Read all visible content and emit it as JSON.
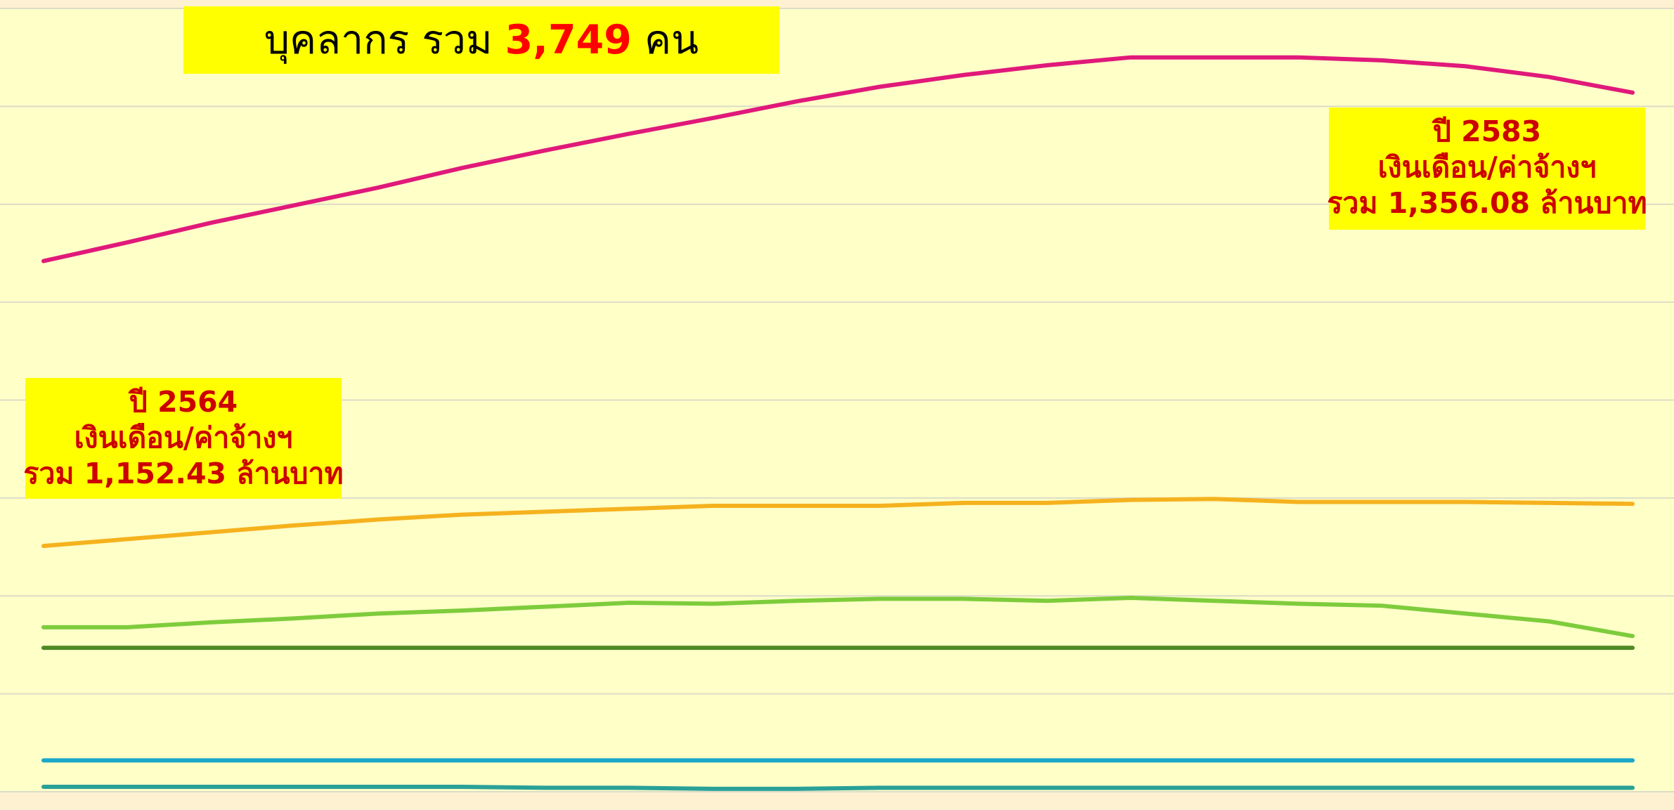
{
  "chart_data": {
    "type": "line",
    "title": [
      "บุคลากร รวม ",
      "3,749",
      " คน"
    ],
    "annotations": [
      [
        "ปี 2583",
        "เงินเดือน/ค่าจ้างฯ",
        "รวม 1,356.08 ล้านบาท"
      ],
      [
        "ปี 2564",
        "เงินเดือน/ค่าจ้างฯ",
        "รวม 1,152.43 ล้านบาท"
      ]
    ],
    "ylim": [
      0,
      8
    ],
    "yticks": [
      0,
      1,
      2,
      3,
      4,
      5,
      6,
      7,
      8
    ],
    "grid": true,
    "series": [
      {
        "color": "#e0197a",
        "values": [
          5.42,
          5.61,
          5.81,
          5.99,
          6.17,
          6.37,
          6.55,
          6.72,
          6.88,
          7.05,
          7.2,
          7.32,
          7.42,
          7.5,
          7.5,
          7.5,
          7.47,
          7.41,
          7.3,
          7.14
        ]
      },
      {
        "color": "#f5b21e",
        "values": [
          2.51,
          2.58,
          2.65,
          2.72,
          2.78,
          2.83,
          2.86,
          2.89,
          2.92,
          2.92,
          2.92,
          2.95,
          2.95,
          2.98,
          2.99,
          2.96,
          2.96,
          2.96,
          2.95,
          2.94
        ]
      },
      {
        "color": "#7ecc3c",
        "values": [
          1.68,
          1.68,
          1.73,
          1.77,
          1.82,
          1.85,
          1.89,
          1.93,
          1.92,
          1.95,
          1.97,
          1.97,
          1.95,
          1.98,
          1.95,
          1.92,
          1.9,
          1.82,
          1.74,
          1.59
        ]
      },
      {
        "color": "#4f8a25",
        "values": [
          1.47,
          1.47,
          1.47,
          1.47,
          1.47,
          1.47,
          1.47,
          1.47,
          1.47,
          1.47,
          1.47,
          1.47,
          1.47,
          1.47,
          1.47,
          1.47,
          1.47,
          1.47,
          1.47,
          1.47
        ]
      },
      {
        "color": "#1aa8c8",
        "values": [
          0.32,
          0.32,
          0.32,
          0.32,
          0.32,
          0.32,
          0.32,
          0.32,
          0.32,
          0.32,
          0.32,
          0.32,
          0.32,
          0.32,
          0.32,
          0.32,
          0.32,
          0.32,
          0.32,
          0.32
        ]
      },
      {
        "color": "#2aa198",
        "values": [
          0.05,
          0.05,
          0.05,
          0.05,
          0.05,
          0.05,
          0.04,
          0.04,
          0.03,
          0.03,
          0.04,
          0.04,
          0.04,
          0.04,
          0.04,
          0.04,
          0.04,
          0.04,
          0.04,
          0.04
        ]
      }
    ]
  }
}
